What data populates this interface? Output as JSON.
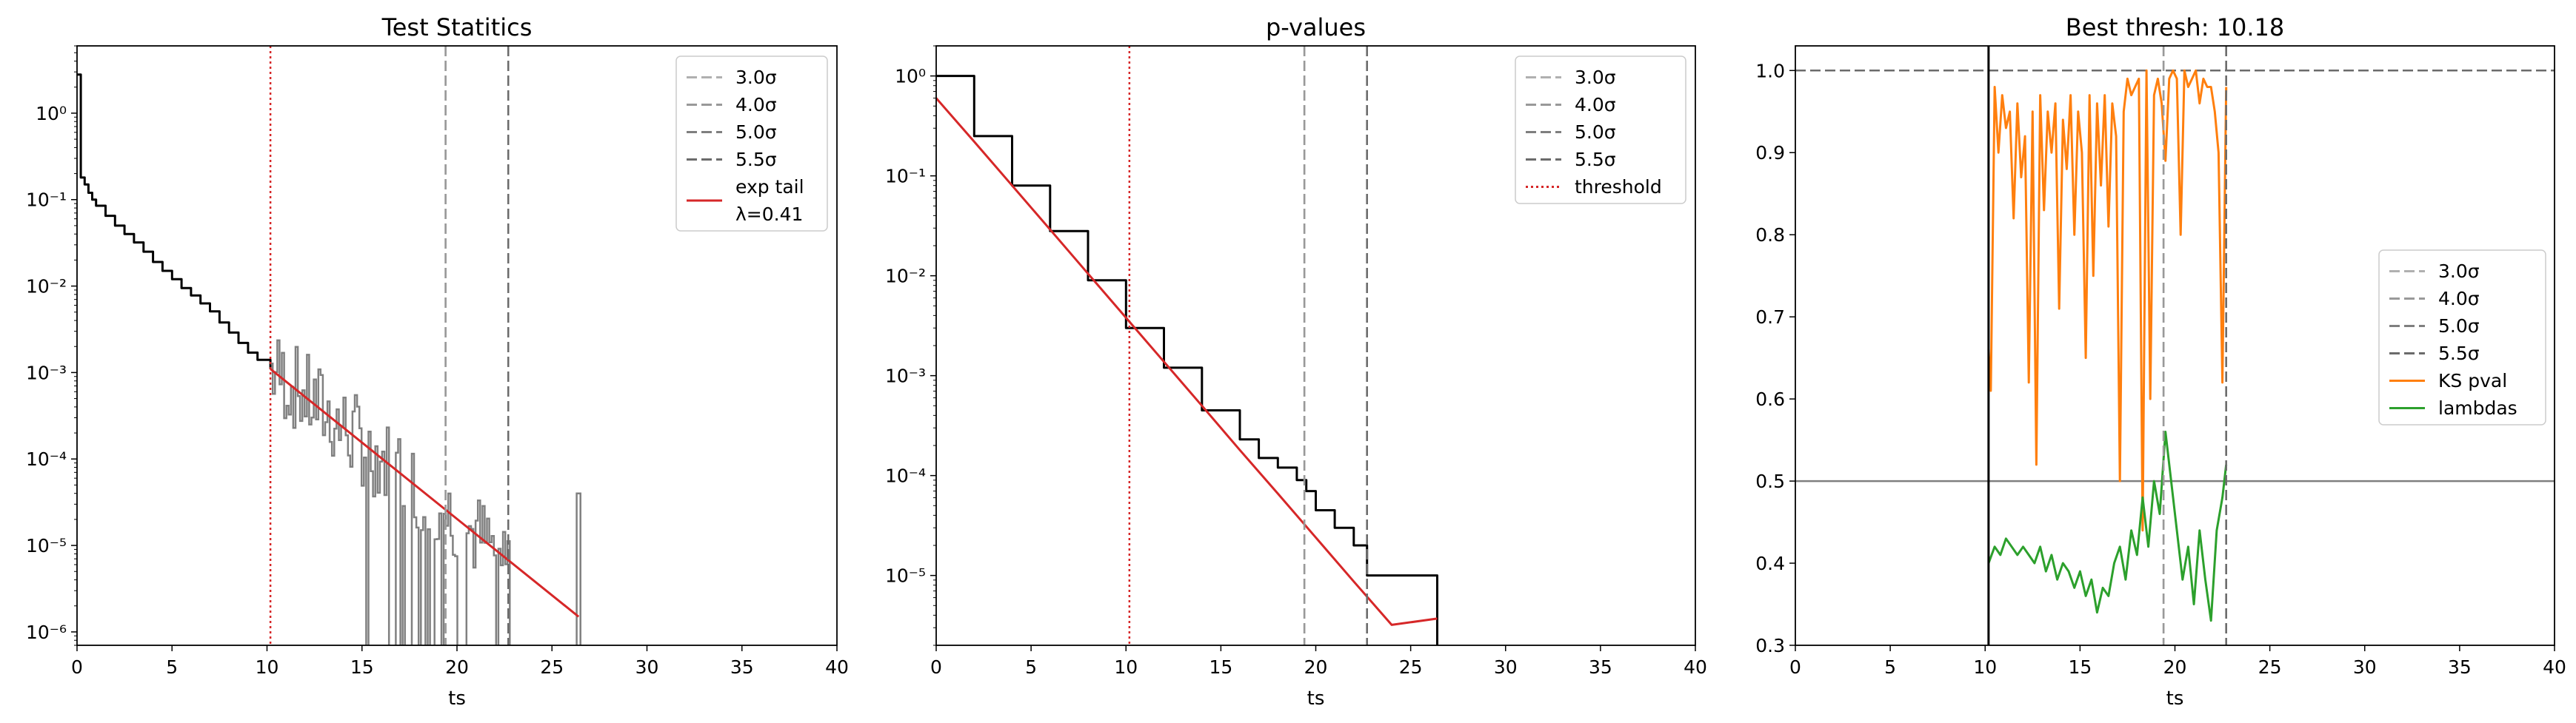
{
  "colors": {
    "data_black": "#000000",
    "data_gray": "#808080",
    "fit_red": "#d62728",
    "ks_orange": "#ff7f0e",
    "lambda_green": "#2ca02c",
    "sigma3": "#b0b0b0",
    "sigma4": "#999999",
    "sigma5": "#7f7f7f",
    "sigma55": "#6b6b6b"
  },
  "chart_data": [
    {
      "type": "line",
      "title": "Test Statitics",
      "xlabel": "ts",
      "ylabel": "",
      "yscale": "log",
      "xlim": [
        0,
        40
      ],
      "ylim": [
        7e-07,
        6
      ],
      "xticks": [
        0,
        5,
        10,
        15,
        20,
        25,
        30,
        35,
        40
      ],
      "xtick_labels": [
        "0",
        "5",
        "10",
        "15",
        "20",
        "25",
        "30",
        "35",
        "40"
      ],
      "yticks": [
        1,
        0.1,
        0.01,
        0.001,
        0.0001,
        1e-05,
        1e-06
      ],
      "ytick_labels": [
        "10⁰",
        "10⁻¹",
        "10⁻²",
        "10⁻³",
        "10⁻⁴",
        "10⁻⁵",
        "10⁻⁶"
      ],
      "legend_position": "top-right",
      "vlines": [
        {
          "x": 19.4,
          "name": "3.0σ",
          "color_key": "sigma3",
          "style": "dashed"
        },
        {
          "x": 19.4,
          "name": "4.0σ",
          "color_key": "sigma4",
          "style": "dashed"
        },
        {
          "x": 22.7,
          "name": "5.0σ",
          "color_key": "sigma5",
          "style": "dashed"
        },
        {
          "x": 22.7,
          "name": "5.5σ",
          "color_key": "sigma55",
          "style": "dashed"
        },
        {
          "x": 10.18,
          "name": "",
          "color_key": "fit_red",
          "style": "dotted"
        }
      ],
      "series": [
        {
          "name": "",
          "color_key": "data_black",
          "kind": "step",
          "x": [
            0,
            0.1,
            0.2,
            0.4,
            0.6,
            0.8,
            1,
            1.5,
            2,
            2.5,
            3,
            3.5,
            4,
            4.5,
            5,
            5.5,
            6,
            6.5,
            7,
            7.5,
            8,
            8.5,
            9,
            9.5,
            10.18
          ],
          "y": [
            2.8,
            2.8,
            0.18,
            0.15,
            0.12,
            0.1,
            0.085,
            0.065,
            0.05,
            0.04,
            0.032,
            0.025,
            0.019,
            0.015,
            0.012,
            0.0095,
            0.0078,
            0.0063,
            0.0051,
            0.0038,
            0.0029,
            0.0022,
            0.0017,
            0.0014,
            0.0011
          ]
        },
        {
          "name": "",
          "color_key": "data_gray",
          "kind": "noisy-step",
          "x_range": [
            10.18,
            22.8
          ],
          "extra_x": [
            26.4
          ]
        },
        {
          "name": "exp tail\nλ=0.41",
          "color_key": "fit_red",
          "kind": "line",
          "x": [
            10.18,
            26.4
          ],
          "y": [
            0.0011,
            1.5e-06
          ]
        }
      ],
      "legend": [
        "3.0σ",
        "4.0σ",
        "5.0σ",
        "5.5σ",
        "exp tail",
        "λ=0.41"
      ]
    },
    {
      "type": "line",
      "title": "p-values",
      "xlabel": "ts",
      "ylabel": "",
      "yscale": "log",
      "xlim": [
        0,
        40
      ],
      "ylim": [
        2e-06,
        2
      ],
      "xticks": [
        0,
        5,
        10,
        15,
        20,
        25,
        30,
        35,
        40
      ],
      "xtick_labels": [
        "0",
        "5",
        "10",
        "15",
        "20",
        "25",
        "30",
        "35",
        "40"
      ],
      "yticks": [
        1,
        0.1,
        0.01,
        0.001,
        0.0001,
        1e-05
      ],
      "ytick_labels": [
        "10⁰",
        "10⁻¹",
        "10⁻²",
        "10⁻³",
        "10⁻⁴",
        "10⁻⁵"
      ],
      "legend_position": "top-right",
      "vlines": [
        {
          "x": 19.4,
          "name": "3.0σ",
          "color_key": "sigma3",
          "style": "dashed"
        },
        {
          "x": 19.4,
          "name": "4.0σ",
          "color_key": "sigma4",
          "style": "dashed"
        },
        {
          "x": 22.7,
          "name": "5.0σ",
          "color_key": "sigma5",
          "style": "dashed"
        },
        {
          "x": 22.7,
          "name": "5.5σ",
          "color_key": "sigma55",
          "style": "dashed"
        },
        {
          "x": 10.18,
          "name": "threshold",
          "color_key": "fit_red",
          "style": "dotted"
        }
      ],
      "series": [
        {
          "name": "",
          "color_key": "data_black",
          "kind": "step",
          "x": [
            0,
            2,
            4,
            6,
            8,
            10,
            12,
            14,
            16,
            17,
            18,
            19,
            19.5,
            20,
            21,
            22,
            22.7,
            26.4
          ],
          "y": [
            1,
            0.25,
            0.08,
            0.028,
            0.009,
            0.003,
            0.0012,
            0.00045,
            0.00023,
            0.00015,
            0.00012,
            9e-05,
            7e-05,
            4.5e-05,
            3e-05,
            2e-05,
            1e-05,
            1e-05
          ]
        },
        {
          "name": "",
          "color_key": "fit_red",
          "kind": "line",
          "x": [
            0,
            2,
            4,
            6,
            8,
            10,
            12,
            14,
            16,
            18,
            20,
            22,
            24,
            26.4
          ],
          "y": [
            0.6,
            0.22,
            0.08,
            0.029,
            0.0105,
            0.0038,
            0.00138,
            0.0005,
            0.00018,
            6.6e-05,
            2.4e-05,
            8.7e-06,
            3.2e-06,
            3.7e-06
          ]
        }
      ],
      "legend": [
        "3.0σ",
        "4.0σ",
        "5.0σ",
        "5.5σ",
        "threshold"
      ]
    },
    {
      "type": "line",
      "title": "Best thresh: 10.18",
      "xlabel": "ts",
      "ylabel": "",
      "yscale": "linear",
      "xlim": [
        0,
        40
      ],
      "ylim": [
        0.3,
        1.03
      ],
      "xticks": [
        0,
        5,
        10,
        15,
        20,
        25,
        30,
        35,
        40
      ],
      "xtick_labels": [
        "0",
        "5",
        "10",
        "15",
        "20",
        "25",
        "30",
        "35",
        "40"
      ],
      "yticks": [
        0.3,
        0.4,
        0.5,
        0.6,
        0.7,
        0.8,
        0.9,
        1.0
      ],
      "ytick_labels": [
        "0.3",
        "0.4",
        "0.5",
        "0.6",
        "0.7",
        "0.8",
        "0.9",
        "1.0"
      ],
      "legend_position": "center-right",
      "hlines": [
        {
          "y": 1.0,
          "color_key": "sigma55",
          "style": "dashed"
        },
        {
          "y": 0.5,
          "color_key": "sigma5",
          "style": "solid"
        }
      ],
      "vlines": [
        {
          "x": 10.18,
          "name": "",
          "color_key": "data_black",
          "style": "solid"
        },
        {
          "x": 19.4,
          "name": "3.0σ",
          "color_key": "sigma3",
          "style": "dashed"
        },
        {
          "x": 19.4,
          "name": "4.0σ",
          "color_key": "sigma4",
          "style": "dashed"
        },
        {
          "x": 22.7,
          "name": "5.0σ",
          "color_key": "sigma5",
          "style": "dashed"
        },
        {
          "x": 22.7,
          "name": "5.5σ",
          "color_key": "sigma55",
          "style": "dashed"
        }
      ],
      "series": [
        {
          "name": "KS pval",
          "color_key": "ks_orange",
          "kind": "line",
          "x": [
            10.18,
            10.3,
            10.5,
            10.7,
            10.9,
            11.1,
            11.3,
            11.5,
            11.7,
            11.9,
            12.1,
            12.3,
            12.5,
            12.7,
            12.9,
            13.1,
            13.3,
            13.5,
            13.7,
            13.9,
            14.1,
            14.3,
            14.5,
            14.7,
            14.9,
            15.1,
            15.3,
            15.5,
            15.7,
            15.9,
            16.1,
            16.3,
            16.5,
            16.7,
            16.9,
            17.1,
            17.3,
            17.5,
            17.7,
            17.9,
            18.1,
            18.3,
            18.5,
            18.7,
            18.9,
            19.1,
            19.3,
            19.5,
            19.7,
            19.9,
            20.1,
            20.3,
            20.5,
            20.7,
            20.9,
            21.1,
            21.3,
            21.5,
            21.7,
            21.9,
            22.1,
            22.3,
            22.5,
            22.7
          ],
          "y": [
            0.66,
            0.61,
            0.98,
            0.9,
            0.97,
            0.93,
            0.95,
            0.82,
            0.96,
            0.87,
            0.92,
            0.62,
            0.95,
            0.52,
            0.97,
            0.83,
            0.95,
            0.9,
            0.96,
            0.71,
            0.94,
            0.88,
            0.97,
            0.8,
            0.95,
            0.9,
            0.65,
            0.97,
            0.75,
            0.96,
            0.86,
            0.97,
            0.81,
            0.96,
            0.92,
            0.5,
            0.95,
            0.99,
            0.97,
            0.98,
            0.99,
            0.44,
            1.0,
            0.6,
            0.97,
            0.99,
            0.96,
            0.89,
            0.99,
            1.0,
            0.99,
            0.8,
            1.0,
            0.98,
            0.99,
            1.0,
            0.96,
            0.99,
            0.98,
            0.98,
            0.95,
            0.9,
            0.62,
            0.98
          ]
        },
        {
          "name": "lambdas",
          "color_key": "lambda_green",
          "kind": "line",
          "x": [
            10.18,
            10.5,
            10.8,
            11.1,
            11.4,
            11.7,
            12.0,
            12.3,
            12.6,
            12.9,
            13.2,
            13.5,
            13.8,
            14.1,
            14.4,
            14.7,
            15.0,
            15.3,
            15.6,
            15.9,
            16.2,
            16.5,
            16.8,
            17.1,
            17.4,
            17.7,
            18.0,
            18.3,
            18.6,
            18.9,
            19.2,
            19.5,
            19.8,
            20.1,
            20.4,
            20.7,
            21.0,
            21.3,
            21.6,
            21.9,
            22.2,
            22.5,
            22.7
          ],
          "y": [
            0.4,
            0.42,
            0.41,
            0.43,
            0.42,
            0.41,
            0.42,
            0.41,
            0.4,
            0.42,
            0.39,
            0.41,
            0.38,
            0.4,
            0.39,
            0.37,
            0.39,
            0.36,
            0.38,
            0.34,
            0.37,
            0.36,
            0.4,
            0.42,
            0.38,
            0.44,
            0.41,
            0.48,
            0.42,
            0.5,
            0.46,
            0.56,
            0.5,
            0.44,
            0.38,
            0.42,
            0.35,
            0.44,
            0.38,
            0.33,
            0.44,
            0.48,
            0.52
          ]
        }
      ],
      "legend": [
        "3.0σ",
        "4.0σ",
        "5.0σ",
        "5.5σ",
        "KS pval",
        "lambdas"
      ]
    }
  ]
}
